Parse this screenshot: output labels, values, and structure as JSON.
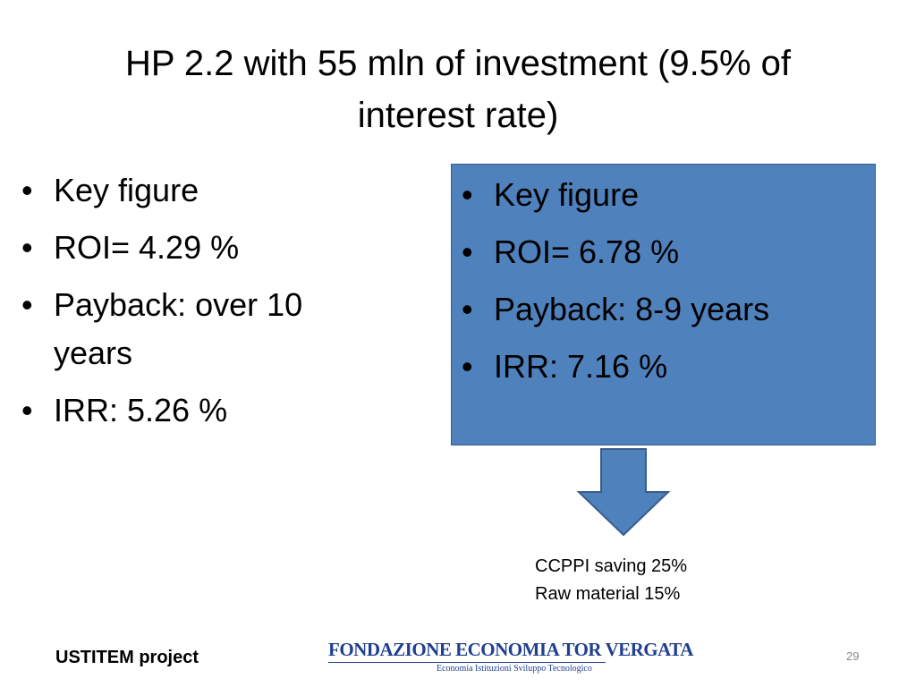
{
  "title": "HP 2.2 with 55 mln of investment (9.5% of interest rate)",
  "left_list": [
    "Key figure",
    "ROI= 4.29 %",
    "Payback: over 10 years",
    "IRR: 5.26 %"
  ],
  "right_box": [
    "Key figure",
    "ROI= 6.78 %",
    "Payback: 8-9 years",
    "IRR: 7.16 %"
  ],
  "note": [
    "CCPPI saving 25%",
    "Raw material 15%"
  ],
  "footer": {
    "project": "USTITEM project",
    "logo_title": "FONDAZIONE ECONOMIA TOR VERGATA",
    "logo_subtitle": "Economia  Istituzioni  Sviluppo Tecnologico",
    "page_number": "29"
  }
}
